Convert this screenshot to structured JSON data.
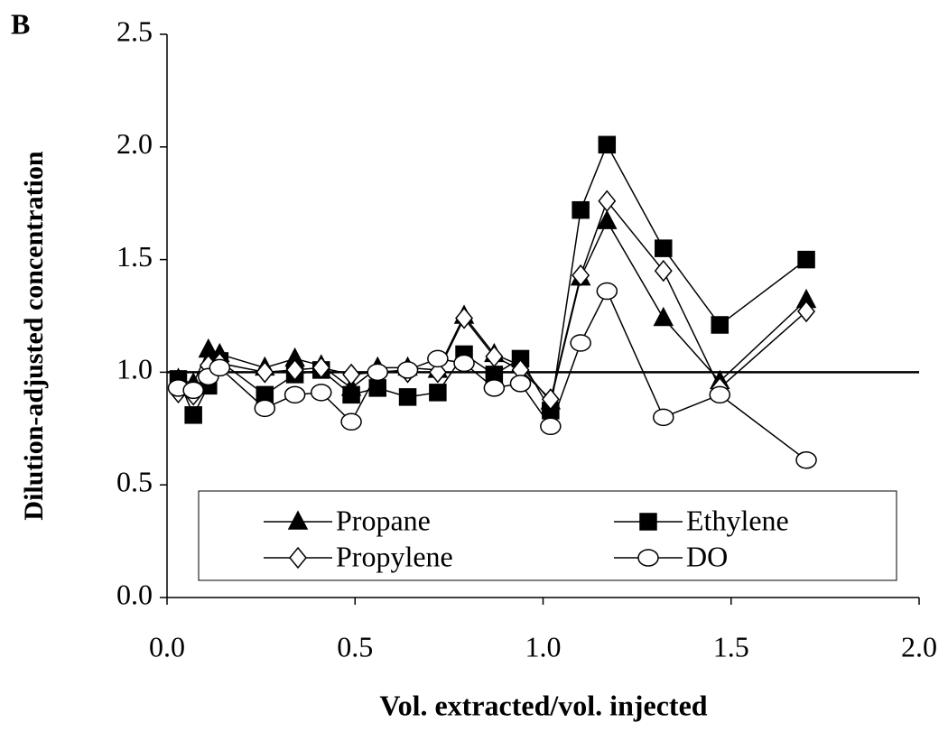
{
  "chart_data": {
    "type": "line",
    "panel_label": "B",
    "x_label": "Vol. extracted/vol. injected",
    "y_label": "Dilution-adjusted concentration",
    "x": [
      0.03,
      0.07,
      0.11,
      0.14,
      0.26,
      0.34,
      0.41,
      0.49,
      0.56,
      0.64,
      0.72,
      0.79,
      0.87,
      0.94,
      1.02,
      1.1,
      1.17,
      1.32,
      1.47,
      1.7
    ],
    "series": [
      {
        "name": "Propane",
        "color": "#000000",
        "marker": "triangle",
        "values": [
          0.97,
          0.95,
          1.1,
          1.08,
          1.02,
          1.06,
          1.03,
          0.93,
          1.02,
          1.02,
          1.01,
          1.25,
          1.08,
          1.03,
          0.87,
          1.42,
          1.67,
          1.24,
          0.96,
          1.32
        ]
      },
      {
        "name": "Ethylene",
        "color": "#000000",
        "marker": "square",
        "values": [
          0.97,
          0.81,
          0.94,
          1.05,
          0.9,
          0.99,
          1.01,
          0.9,
          0.93,
          0.89,
          0.91,
          1.08,
          0.99,
          1.06,
          0.83,
          1.72,
          2.01,
          1.55,
          1.21,
          1.5
        ]
      },
      {
        "name": "Propylene",
        "color": "#000000",
        "marker": "diamond",
        "values": [
          0.91,
          0.9,
          1.03,
          1.04,
          1.0,
          1.01,
          1.02,
          0.99,
          1.0,
          1.0,
          1.0,
          1.24,
          1.07,
          1.01,
          0.88,
          1.43,
          1.76,
          1.45,
          0.93,
          1.27
        ]
      },
      {
        "name": "DO",
        "color": "#000000",
        "marker": "circle",
        "values": [
          0.93,
          0.92,
          0.98,
          1.02,
          0.84,
          0.9,
          0.91,
          0.78,
          1.0,
          1.01,
          1.06,
          1.04,
          0.93,
          0.95,
          0.76,
          1.13,
          1.36,
          0.8,
          0.9,
          0.61
        ]
      }
    ],
    "reference_line": 1.0,
    "xlim": [
      0,
      2
    ],
    "ylim": [
      0,
      2.5
    ],
    "xticks": [
      {
        "value": 0,
        "label": "0.0"
      },
      {
        "value": 0.5,
        "label": "0.5"
      },
      {
        "value": 1,
        "label": "1.0"
      },
      {
        "value": 1.5,
        "label": "1.5"
      },
      {
        "value": 2,
        "label": "2.0"
      }
    ],
    "yticks": [
      {
        "value": 0,
        "label": "0.0"
      },
      {
        "value": 0.5,
        "label": "0.5"
      },
      {
        "value": 1,
        "label": "1.0"
      },
      {
        "value": 1.5,
        "label": "1.5"
      },
      {
        "value": 2,
        "label": "2.0"
      },
      {
        "value": 2.5,
        "label": "2.5"
      }
    ],
    "grid": false,
    "legend": "bottom"
  }
}
